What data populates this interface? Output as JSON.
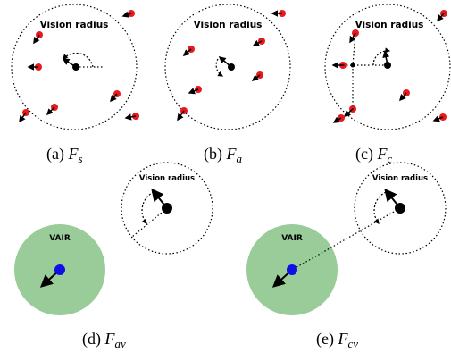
{
  "labels": {
    "vision_radius": "Vision radius",
    "vair": "VAIR"
  },
  "captions": [
    {
      "prefix": "(a)",
      "symbol": "F",
      "sub": "s"
    },
    {
      "prefix": "(b)",
      "symbol": "F",
      "sub": "a"
    },
    {
      "prefix": "(c)",
      "symbol": "F",
      "sub": "c"
    },
    {
      "prefix": "(d)",
      "symbol": "F",
      "sub": "av"
    },
    {
      "prefix": "(e)",
      "symbol": "F",
      "sub": "cv"
    }
  ],
  "colors": {
    "neighbor": "#e8191c",
    "agent": "#000000",
    "vair_agent": "#1010e6",
    "vair_zone": "#99cc99",
    "circle": "#000000"
  }
}
